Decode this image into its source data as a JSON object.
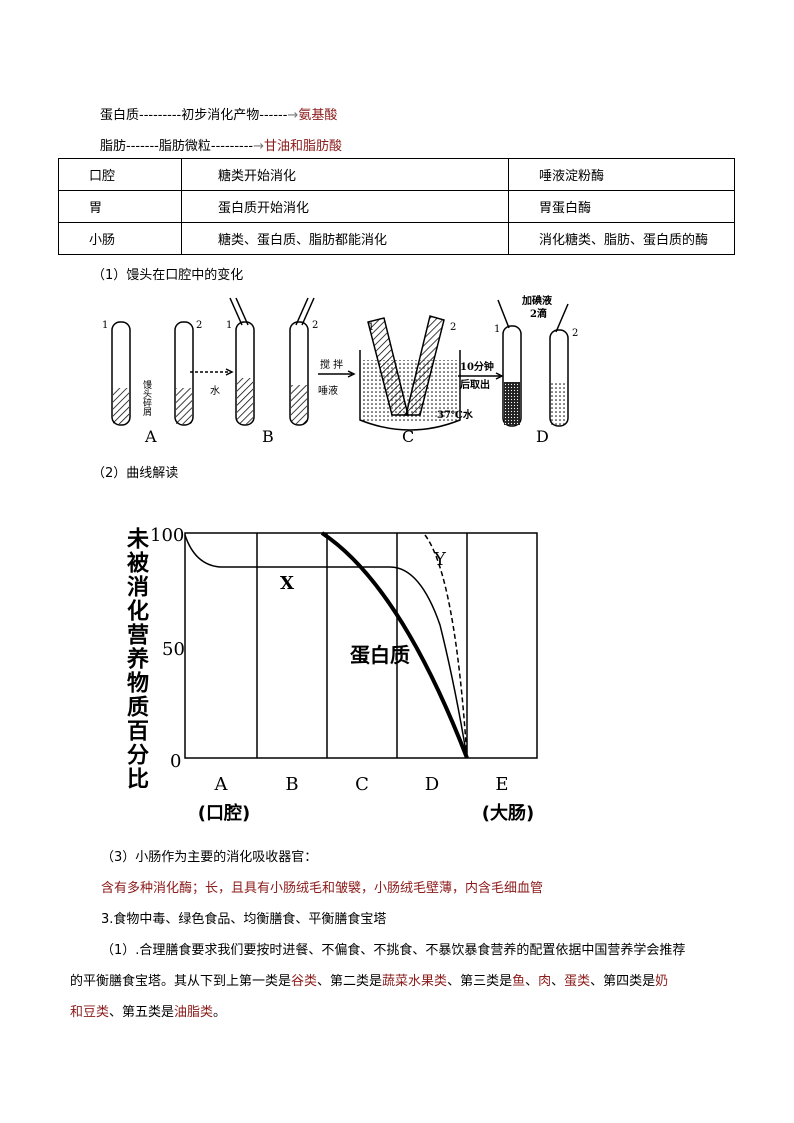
{
  "flow": {
    "protein": {
      "start": "蛋白质",
      "dash1": "---------",
      "mid": "初步消化产物",
      "dash2": "------",
      "arrow": "→",
      "end": "氨基酸"
    },
    "fat": {
      "start": "脂肪",
      "dash1": "-------",
      "mid": "脂肪微粒",
      "dash2": "---------",
      "arrow": "→",
      "end": "甘油和脂肪酸"
    }
  },
  "table": {
    "rows": [
      [
        "口腔",
        "糖类开始消化",
        "唾液淀粉酶"
      ],
      [
        "胃",
        "蛋白质开始消化",
        "胃蛋白酶"
      ],
      [
        "小肠",
        "糖类、蛋白质、脂肪都能消化",
        "消化糖类、脂肪、蛋白质的酶"
      ]
    ]
  },
  "section1": "（1）馒头在口腔中的变化",
  "experiment": {
    "tube1": "1",
    "tube2": "2",
    "crumbs": "馒头碎屑",
    "water": "水",
    "saliva": "唾液",
    "stir": "搅 拌",
    "bath": "37℃水",
    "wait": "10分钟",
    "takeout": "后取出",
    "iodine": "加碘液",
    "drops": "2滴",
    "steps": [
      "A",
      "B",
      "C",
      "D"
    ]
  },
  "section2": "（2）曲线解读",
  "curve_figure": {
    "ylabel": "未被消化营养物质百分比",
    "yticks": [
      "100",
      "50",
      "0"
    ],
    "xticks": [
      "A",
      "B",
      "C",
      "D",
      "E"
    ],
    "xsub": {
      "A": "(口腔)",
      "E": "(大肠)"
    },
    "labels": {
      "x": "X",
      "y": "Y",
      "protein": "蛋白质"
    }
  },
  "section3": "（3）小肠作为主要的消化吸收器官：",
  "section3_answer": "含有多种消化酶；长，且具有小肠绒毛和皱襞，小肠绒毛壁薄，内含毛细血管",
  "heading3": "3.食物中毒、绿色食品、均衡膳食、平衡膳食宝塔",
  "para": {
    "p1": "（1）.合理膳食要求我们要按时进餐、不偏食、不挑食、不暴饮暴食营养的配置依据中国营养学会推荐",
    "p2a": "的平衡膳食宝塔。其从下到上第一类是",
    "r1": "谷类",
    "p2b": "、第二类是",
    "r2": "蔬菜水果类",
    "p2c": "、第三类是",
    "r3": "鱼",
    "p2d": "、",
    "r4": "肉",
    "p2e": "、",
    "r5": "蛋类",
    "p2f": "、第四类是",
    "r6a": "奶",
    "r6b": "和豆类",
    "p3a": "、第五类是",
    "r7": "油脂类",
    "p3b": "。"
  },
  "colors": {
    "accent_red": "#8b1a1a"
  }
}
